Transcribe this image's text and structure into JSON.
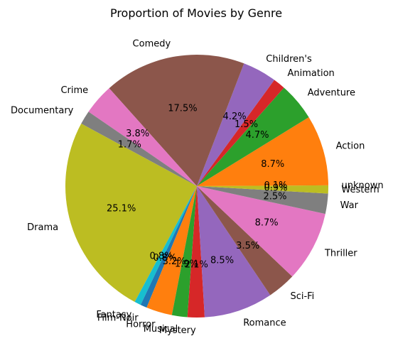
{
  "chart_data": {
    "type": "pie",
    "title": "Proportion of Movies by Genre",
    "start_angle_deg": 0,
    "direction": "counterclockwise",
    "slices": [
      {
        "label": "unknown",
        "value": 0.1,
        "pct_label": "0.1%",
        "color": "#bcbd22"
      },
      {
        "label": "Action",
        "value": 8.7,
        "pct_label": "8.7%",
        "color": "#ff7f0e"
      },
      {
        "label": "Adventure",
        "value": 4.7,
        "pct_label": "4.7%",
        "color": "#2ca02c"
      },
      {
        "label": "Animation",
        "value": 1.5,
        "pct_label": "1.5%",
        "color": "#d62728"
      },
      {
        "label": "Children's",
        "value": 4.2,
        "pct_label": "4.2%",
        "color": "#9467bd"
      },
      {
        "label": "Comedy",
        "value": 17.5,
        "pct_label": "17.5%",
        "color": "#8c564b"
      },
      {
        "label": "Crime",
        "value": 3.8,
        "pct_label": "3.8%",
        "color": "#e377c2"
      },
      {
        "label": "Documentary",
        "value": 1.7,
        "pct_label": "1.7%",
        "color": "#7f7f7f"
      },
      {
        "label": "Drama",
        "value": 25.1,
        "pct_label": "25.1%",
        "color": "#bcbd22"
      },
      {
        "label": "Fantasy",
        "value": 0.8,
        "pct_label": "0.8%",
        "color": "#17becf"
      },
      {
        "label": "Film-Noir",
        "value": 0.8,
        "pct_label": "0.8%",
        "color": "#1f77b4"
      },
      {
        "label": "Horror",
        "value": 3.2,
        "pct_label": "3.2%",
        "color": "#ff7f0e"
      },
      {
        "label": "Musical",
        "value": 1.9,
        "pct_label": "1.9%",
        "color": "#2ca02c"
      },
      {
        "label": "Mystery",
        "value": 2.1,
        "pct_label": "2.1%",
        "color": "#d62728"
      },
      {
        "label": "Romance",
        "value": 8.5,
        "pct_label": "8.5%",
        "color": "#9467bd"
      },
      {
        "label": "Sci-Fi",
        "value": 3.5,
        "pct_label": "3.5%",
        "color": "#8c564b"
      },
      {
        "label": "Thriller",
        "value": 8.7,
        "pct_label": "8.7%",
        "color": "#e377c2"
      },
      {
        "label": "War",
        "value": 2.5,
        "pct_label": "2.5%",
        "color": "#7f7f7f"
      },
      {
        "label": "Western",
        "value": 0.9,
        "pct_label": "0.9%",
        "color": "#bcbd22"
      }
    ]
  }
}
